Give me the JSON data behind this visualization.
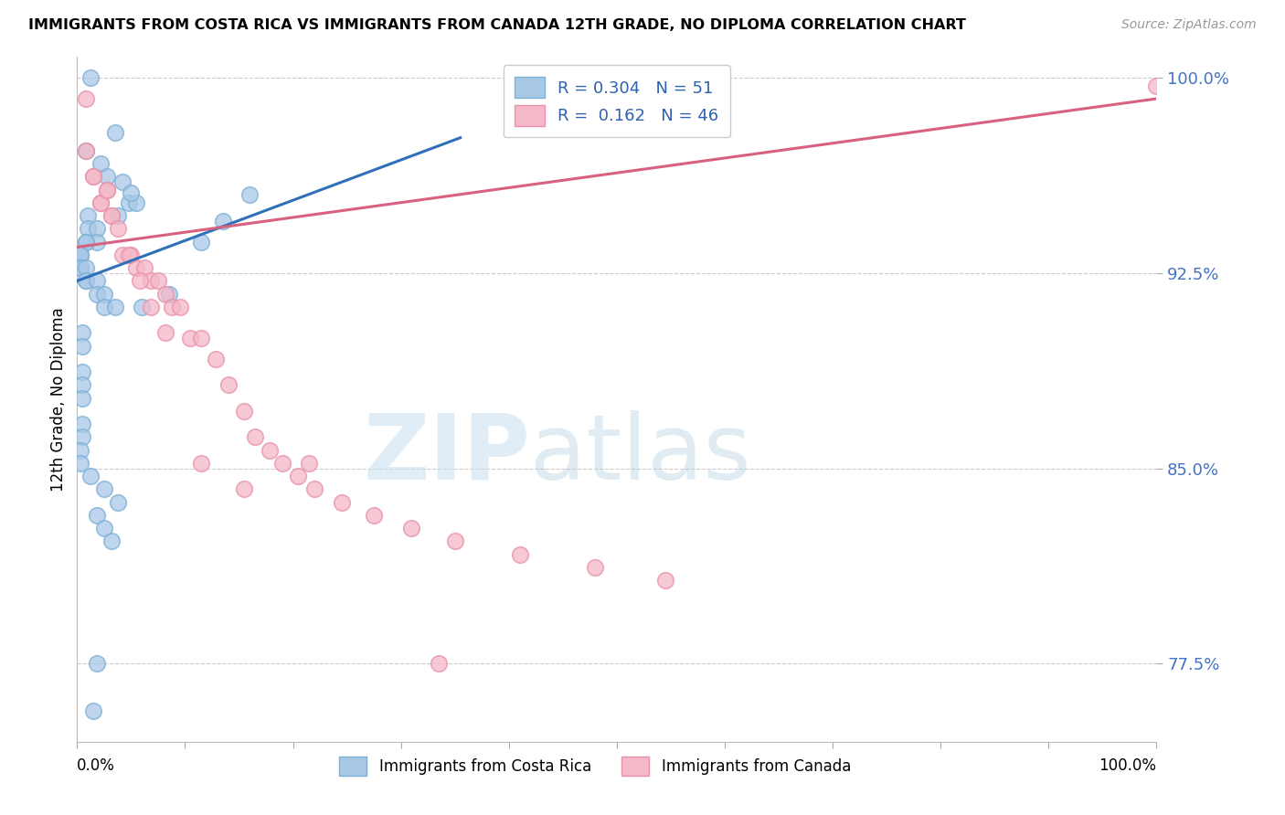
{
  "title": "IMMIGRANTS FROM COSTA RICA VS IMMIGRANTS FROM CANADA 12TH GRADE, NO DIPLOMA CORRELATION CHART",
  "source": "Source: ZipAtlas.com",
  "ylabel": "12th Grade, No Diploma",
  "y_tick_labels": [
    "77.5%",
    "85.0%",
    "92.5%",
    "100.0%"
  ],
  "y_tick_values": [
    0.775,
    0.85,
    0.925,
    1.0
  ],
  "xlim": [
    0.0,
    1.0
  ],
  "ylim": [
    0.745,
    1.008
  ],
  "legend_blue_label": "Immigrants from Costa Rica",
  "legend_pink_label": "Immigrants from Canada",
  "R_blue": 0.304,
  "N_blue": 51,
  "R_pink": 0.162,
  "N_pink": 46,
  "blue_color": "#a8c8e8",
  "blue_edge_color": "#7bafd4",
  "pink_color": "#f4b8c8",
  "pink_edge_color": "#e890a8",
  "trend_blue_color": "#3070b8",
  "trend_pink_color": "#d86080",
  "blue_scatter_x": [
    0.012,
    0.035,
    0.008,
    0.022,
    0.028,
    0.042,
    0.048,
    0.055,
    0.05,
    0.038,
    0.01,
    0.01,
    0.018,
    0.018,
    0.008,
    0.008,
    0.003,
    0.003,
    0.003,
    0.003,
    0.003,
    0.008,
    0.008,
    0.008,
    0.018,
    0.018,
    0.025,
    0.025,
    0.035,
    0.06,
    0.085,
    0.115,
    0.135,
    0.16,
    0.005,
    0.005,
    0.005,
    0.005,
    0.005,
    0.005,
    0.005,
    0.003,
    0.003,
    0.012,
    0.025,
    0.038,
    0.018,
    0.025,
    0.032,
    0.018,
    0.015
  ],
  "blue_scatter_y": [
    1.0,
    0.979,
    0.972,
    0.967,
    0.962,
    0.96,
    0.952,
    0.952,
    0.956,
    0.947,
    0.947,
    0.942,
    0.942,
    0.937,
    0.937,
    0.937,
    0.932,
    0.932,
    0.932,
    0.927,
    0.927,
    0.927,
    0.922,
    0.922,
    0.922,
    0.917,
    0.917,
    0.912,
    0.912,
    0.912,
    0.917,
    0.937,
    0.945,
    0.955,
    0.902,
    0.897,
    0.887,
    0.882,
    0.877,
    0.867,
    0.862,
    0.857,
    0.852,
    0.847,
    0.842,
    0.837,
    0.832,
    0.827,
    0.822,
    0.775,
    0.757
  ],
  "pink_scatter_x": [
    0.008,
    0.008,
    0.015,
    0.015,
    0.022,
    0.022,
    0.028,
    0.028,
    0.032,
    0.032,
    0.038,
    0.042,
    0.05,
    0.055,
    0.062,
    0.068,
    0.075,
    0.082,
    0.088,
    0.095,
    0.105,
    0.115,
    0.128,
    0.14,
    0.155,
    0.165,
    0.178,
    0.19,
    0.205,
    0.22,
    0.245,
    0.275,
    0.31,
    0.35,
    0.41,
    0.48,
    0.545,
    1.0,
    0.048,
    0.058,
    0.068,
    0.082,
    0.115,
    0.155,
    0.215,
    0.335
  ],
  "pink_scatter_y": [
    0.992,
    0.972,
    0.962,
    0.962,
    0.952,
    0.952,
    0.957,
    0.957,
    0.947,
    0.947,
    0.942,
    0.932,
    0.932,
    0.927,
    0.927,
    0.922,
    0.922,
    0.917,
    0.912,
    0.912,
    0.9,
    0.9,
    0.892,
    0.882,
    0.872,
    0.862,
    0.857,
    0.852,
    0.847,
    0.842,
    0.837,
    0.832,
    0.827,
    0.822,
    0.817,
    0.812,
    0.807,
    0.997,
    0.932,
    0.922,
    0.912,
    0.902,
    0.852,
    0.842,
    0.852,
    0.775
  ],
  "blue_trend_x0": 0.0,
  "blue_trend_y0": 0.922,
  "blue_trend_x1": 0.355,
  "blue_trend_y1": 0.977,
  "pink_trend_x0": 0.0,
  "pink_trend_y0": 0.935,
  "pink_trend_x1": 1.0,
  "pink_trend_y1": 0.992
}
